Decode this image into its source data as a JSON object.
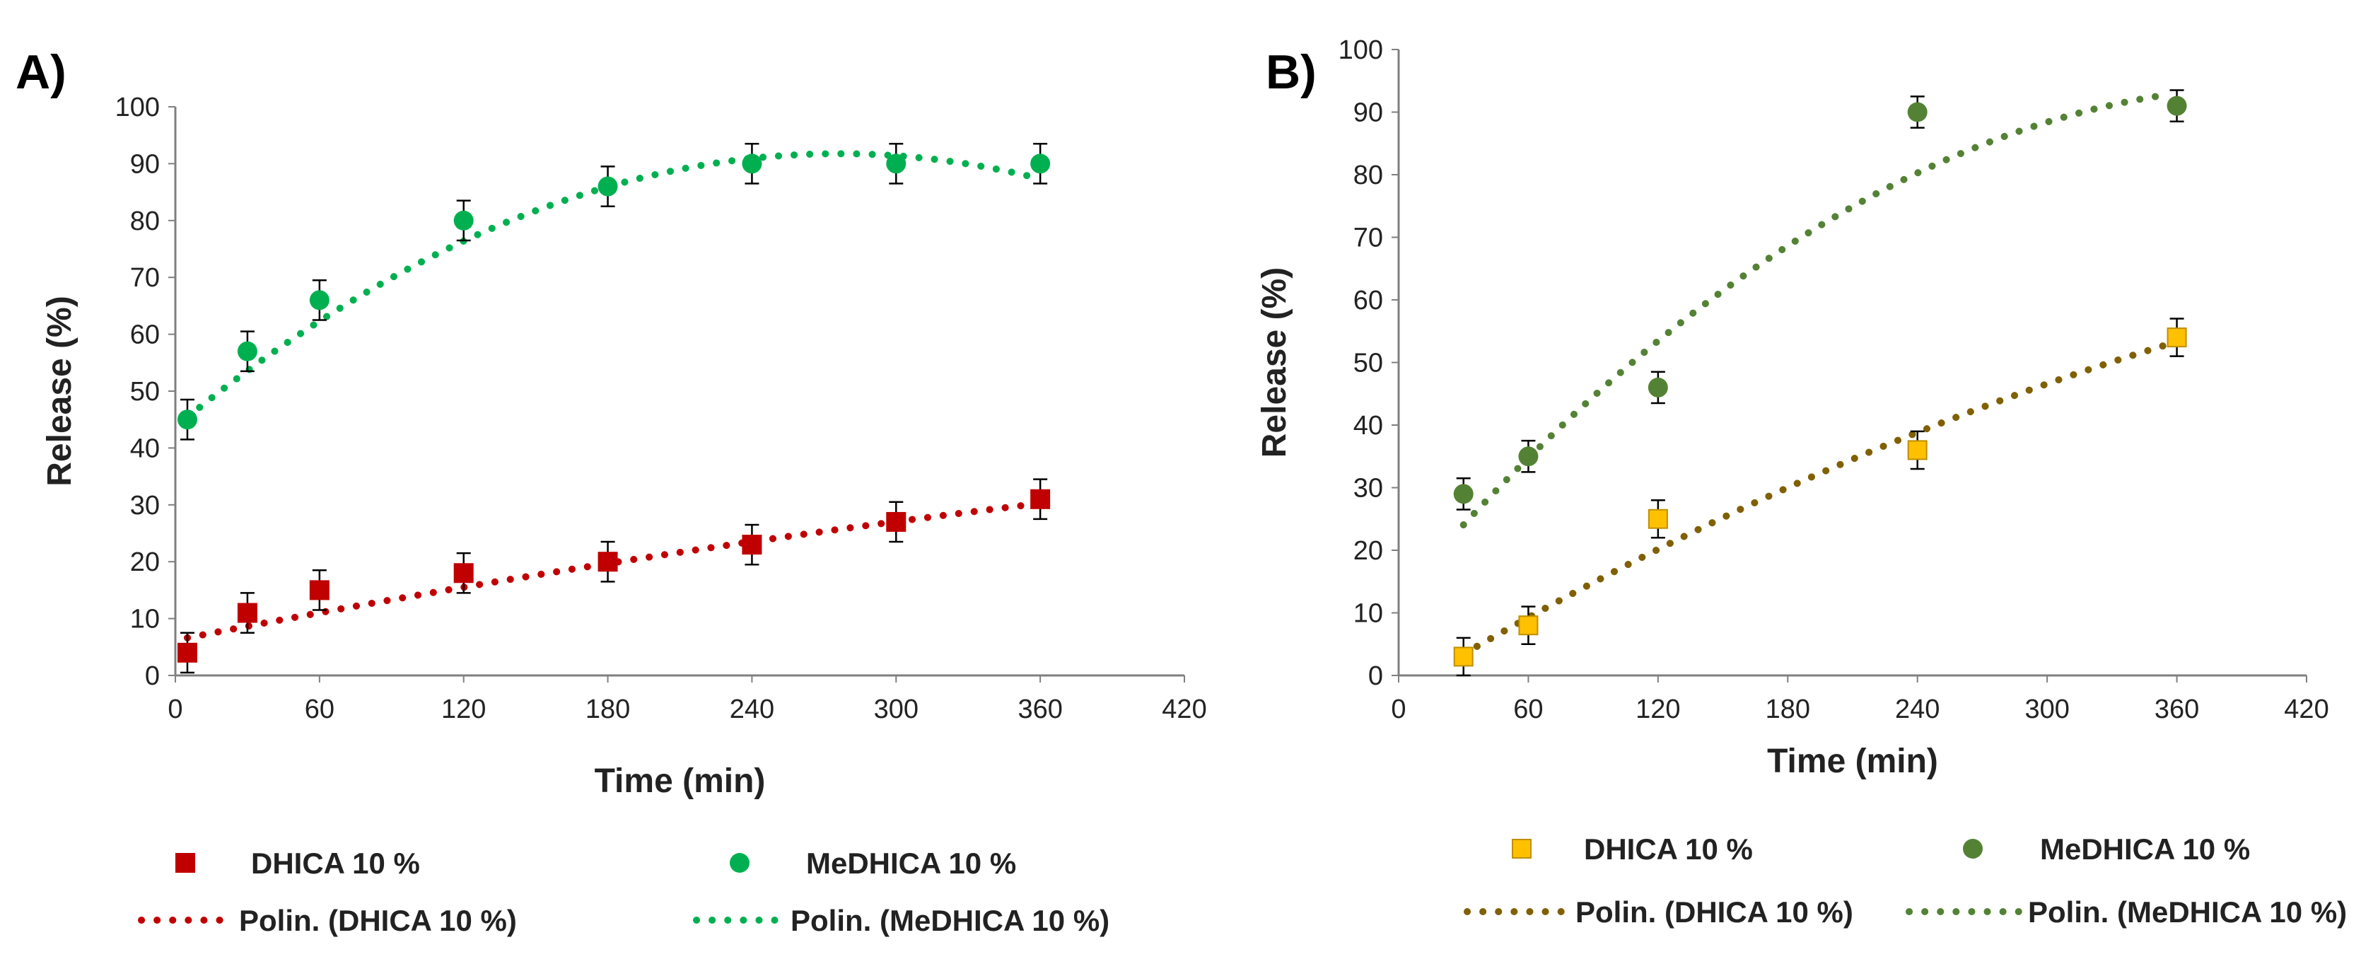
{
  "chart_data": [
    {
      "panel_label": "A)",
      "type": "scatter",
      "xlabel": "Time (min)",
      "ylabel": "Release (%)",
      "xlim": [
        0,
        420
      ],
      "ylim": [
        0,
        100
      ],
      "xticks": [
        0,
        60,
        120,
        180,
        240,
        300,
        360,
        420
      ],
      "yticks": [
        0,
        10,
        20,
        30,
        40,
        50,
        60,
        70,
        80,
        90,
        100
      ],
      "series": [
        {
          "name": "DHICA 10 %",
          "marker": "square",
          "color": "#c00000",
          "x": [
            5,
            30,
            60,
            120,
            180,
            240,
            300,
            360
          ],
          "y": [
            4,
            11,
            15,
            18,
            20,
            23,
            27,
            31
          ],
          "error": [
            3.5,
            3.5,
            3.5,
            3.5,
            3.5,
            3.5,
            3.5,
            3.5
          ]
        },
        {
          "name": "MeDHICA 10 %",
          "marker": "circle",
          "color": "#00b050",
          "x": [
            5,
            30,
            60,
            120,
            180,
            240,
            300,
            360
          ],
          "y": [
            45,
            57,
            66,
            80,
            86,
            90,
            90,
            90
          ],
          "error": [
            3.5,
            3.5,
            3.5,
            3.5,
            3.5,
            3.5,
            3.5,
            3.5
          ]
        }
      ],
      "trendlines": [
        {
          "name": "Polin. (DHICA 10 %)",
          "color": "#c00000",
          "x_range": [
            5,
            360
          ],
          "coeffs": [
            6.2,
            0.083,
            -4.5e-05
          ]
        },
        {
          "name": "Polin. (MeDHICA 10 %)",
          "color": "#00b050",
          "x_range": [
            5,
            360
          ],
          "coeffs": [
            43.7,
            0.348,
            -0.00063
          ]
        }
      ],
      "legend": [
        "DHICA 10 %",
        "MeDHICA 10 %",
        "Polin. (DHICA 10 %)",
        "Polin. (MeDHICA 10 %)"
      ],
      "legend_position": "bottom"
    },
    {
      "panel_label": "B)",
      "type": "scatter",
      "xlabel": "Time (min)",
      "ylabel": "Release (%)",
      "xlim": [
        0,
        420
      ],
      "ylim": [
        0,
        100
      ],
      "xticks": [
        0,
        60,
        120,
        180,
        240,
        300,
        360,
        420
      ],
      "yticks": [
        0,
        10,
        20,
        30,
        40,
        50,
        60,
        70,
        80,
        90,
        100
      ],
      "series": [
        {
          "name": "DHICA 10 %",
          "marker": "square",
          "color": "#ffc000",
          "x": [
            30,
            60,
            120,
            240,
            360
          ],
          "y": [
            3,
            8,
            25,
            36,
            54
          ],
          "error": [
            3,
            3,
            3,
            3,
            3
          ]
        },
        {
          "name": "MeDHICA 10 %",
          "marker": "circle",
          "color": "#548235",
          "x": [
            30,
            60,
            120,
            240,
            360
          ],
          "y": [
            29,
            35,
            46,
            90,
            91
          ],
          "error": [
            2.5,
            2.5,
            2.5,
            2.5,
            2.5
          ]
        }
      ],
      "trendlines": [
        {
          "name": "Polin. (DHICA 10 %)",
          "color": "#806000",
          "x_range": [
            30,
            360
          ],
          "coeffs": [
            -2.7,
            0.2078,
            -0.000145
          ]
        },
        {
          "name": "Polin. (MeDHICA 10 %)",
          "color": "#548235",
          "x_range": [
            30,
            355
          ],
          "coeffs": [
            12.5,
            0.4,
            -0.00049
          ]
        }
      ],
      "legend": [
        "DHICA 10 %",
        "MeDHICA 10 %",
        "Polin. (DHICA 10 %)",
        "Polin. (MeDHICA 10 %)"
      ],
      "legend_position": "bottom"
    }
  ]
}
